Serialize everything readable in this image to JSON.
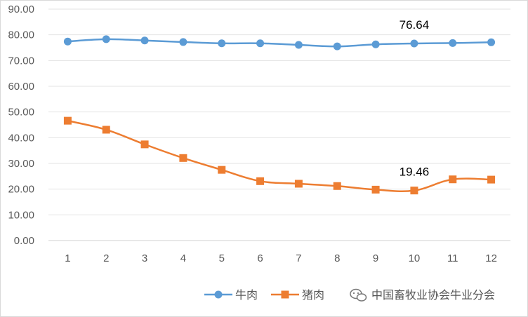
{
  "chart_data": {
    "type": "line",
    "title": "",
    "xlabel": "",
    "ylabel": "",
    "categories": [
      "1",
      "2",
      "3",
      "4",
      "5",
      "6",
      "7",
      "8",
      "9",
      "10",
      "11",
      "12"
    ],
    "ylim": [
      0,
      90
    ],
    "y_ticks": [
      "0.00",
      "10.00",
      "20.00",
      "30.00",
      "40.00",
      "50.00",
      "60.00",
      "70.00",
      "80.00",
      "90.00"
    ],
    "grid": true,
    "legend_position": "bottom",
    "series": [
      {
        "name": "牛肉",
        "color": "#5b9bd5",
        "marker": "circle",
        "values": [
          77.4,
          78.3,
          77.8,
          77.2,
          76.7,
          76.7,
          76.1,
          75.5,
          76.3,
          76.64,
          76.8,
          77.1
        ]
      },
      {
        "name": "猪肉",
        "color": "#ed7d31",
        "marker": "square",
        "values": [
          46.6,
          43.1,
          37.4,
          32.1,
          27.5,
          23.1,
          22.1,
          21.2,
          19.8,
          19.46,
          23.8,
          23.7
        ]
      }
    ],
    "data_labels": [
      {
        "series": 0,
        "index": 9,
        "text": "76.64"
      },
      {
        "series": 1,
        "index": 9,
        "text": "19.46"
      }
    ]
  },
  "watermark": {
    "text": "中国畜牧业协会牛业分会",
    "icon": "wechat-icon"
  }
}
